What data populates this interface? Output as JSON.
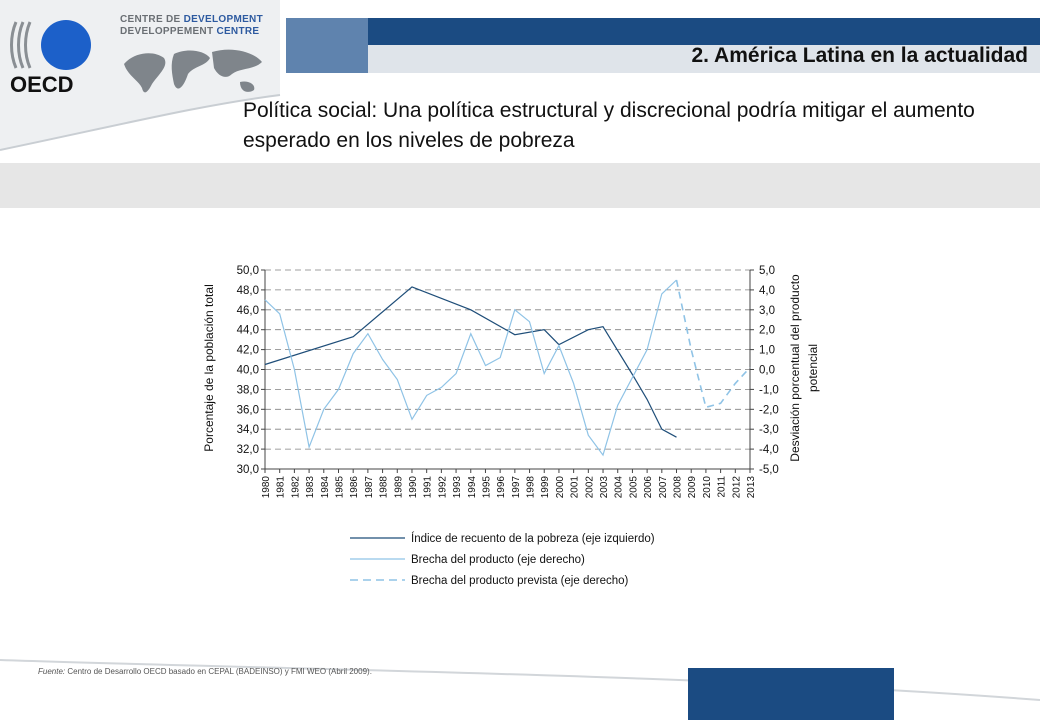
{
  "header": {
    "section_title": "2. América Latina en la actualidad",
    "slide_title": "Política social: Una política estructural y discrecional podría mitigar el aumento esperado en los niveles de pobreza",
    "logo_text": "OECD",
    "dev_centre_line1_a": "CENTRE DE ",
    "dev_centre_line1_b": "DEVELOPMENT",
    "dev_centre_line2_a": "DEVELOPPEMENT ",
    "dev_centre_line2_b": "CENTRE"
  },
  "colors": {
    "dark_blue": "#1b4b82",
    "series_dark": "#1f4e79",
    "series_light": "#8fc3e6",
    "grey_band": "#e6e6e6"
  },
  "footer": {
    "source_label": "Fuente:",
    "source_text": " Centro de Desarrollo OECD basado en CEPAL (BADEINSO) y FMI WEO (Abril 2009)."
  },
  "chart_data": {
    "type": "line",
    "ylabel_left": "Porcentaje de la población total",
    "ylabel_right_line1": "Desviación porcentual del producto",
    "ylabel_right_line2": "potencial",
    "ylim_left": [
      30,
      50
    ],
    "ylim_right": [
      -5,
      5
    ],
    "y_ticks_left": [
      "50,0",
      "48,0",
      "46,0",
      "44,0",
      "42,0",
      "40,0",
      "38,0",
      "36,0",
      "34,0",
      "32,0",
      "30,0"
    ],
    "y_ticks_right": [
      "5,0",
      "4,0",
      "3,0",
      "2,0",
      "1,0",
      "0,0",
      "-1,0",
      "-2,0",
      "-3,0",
      "-4,0",
      "-5,0"
    ],
    "categories": [
      "1980",
      "1981",
      "1982",
      "1983",
      "1984",
      "1985",
      "1986",
      "1987",
      "1988",
      "1989",
      "1990",
      "1991",
      "1992",
      "1993",
      "1994",
      "1995",
      "1996",
      "1997",
      "1998",
      "1999",
      "2000",
      "2001",
      "2002",
      "2003",
      "2004",
      "2005",
      "2006",
      "2007",
      "2008",
      "2009",
      "2010",
      "2011",
      "2012",
      "2013"
    ],
    "grid": true,
    "legend_position": "bottom",
    "series": [
      {
        "name": "Índice de recuento de la pobreza (eje izquierdo)",
        "axis": "left",
        "style": "solid-dark",
        "points": [
          [
            "1980",
            40.5
          ],
          [
            "1986",
            43.3
          ],
          [
            "1990",
            48.3
          ],
          [
            "1994",
            46.0
          ],
          [
            "1997",
            43.5
          ],
          [
            "1999",
            44.0
          ],
          [
            "2000",
            42.5
          ],
          [
            "2002",
            44.0
          ],
          [
            "2003",
            44.3
          ],
          [
            "2005",
            39.5
          ],
          [
            "2006",
            37.0
          ],
          [
            "2007",
            34.0
          ],
          [
            "2008",
            33.2
          ]
        ]
      },
      {
        "name": "Brecha del producto (eje derecho)",
        "axis": "right",
        "style": "solid-light",
        "points": [
          [
            "1980",
            3.5
          ],
          [
            "1981",
            2.8
          ],
          [
            "1982",
            0.0
          ],
          [
            "1983",
            -3.9
          ],
          [
            "1984",
            -2.0
          ],
          [
            "1985",
            -1.0
          ],
          [
            "1986",
            0.8
          ],
          [
            "1987",
            1.8
          ],
          [
            "1988",
            0.5
          ],
          [
            "1989",
            -0.5
          ],
          [
            "1990",
            -2.5
          ],
          [
            "1991",
            -1.3
          ],
          [
            "1992",
            -0.9
          ],
          [
            "1993",
            -0.2
          ],
          [
            "1994",
            1.8
          ],
          [
            "1995",
            0.2
          ],
          [
            "1996",
            0.6
          ],
          [
            "1997",
            3.0
          ],
          [
            "1998",
            2.4
          ],
          [
            "1999",
            -0.2
          ],
          [
            "2000",
            1.2
          ],
          [
            "2001",
            -0.7
          ],
          [
            "2002",
            -3.3
          ],
          [
            "2003",
            -4.3
          ],
          [
            "2004",
            -1.8
          ],
          [
            "2005",
            -0.4
          ],
          [
            "2006",
            1.0
          ],
          [
            "2007",
            3.8
          ],
          [
            "2008",
            4.5
          ]
        ]
      },
      {
        "name": "Brecha del producto prevista (eje derecho)",
        "axis": "right",
        "style": "dashed-light",
        "points": [
          [
            "2008",
            4.5
          ],
          [
            "2009",
            1.0
          ],
          [
            "2010",
            -1.9
          ],
          [
            "2011",
            -1.7
          ],
          [
            "2012",
            -0.7
          ],
          [
            "2013",
            0.1
          ]
        ]
      }
    ]
  }
}
